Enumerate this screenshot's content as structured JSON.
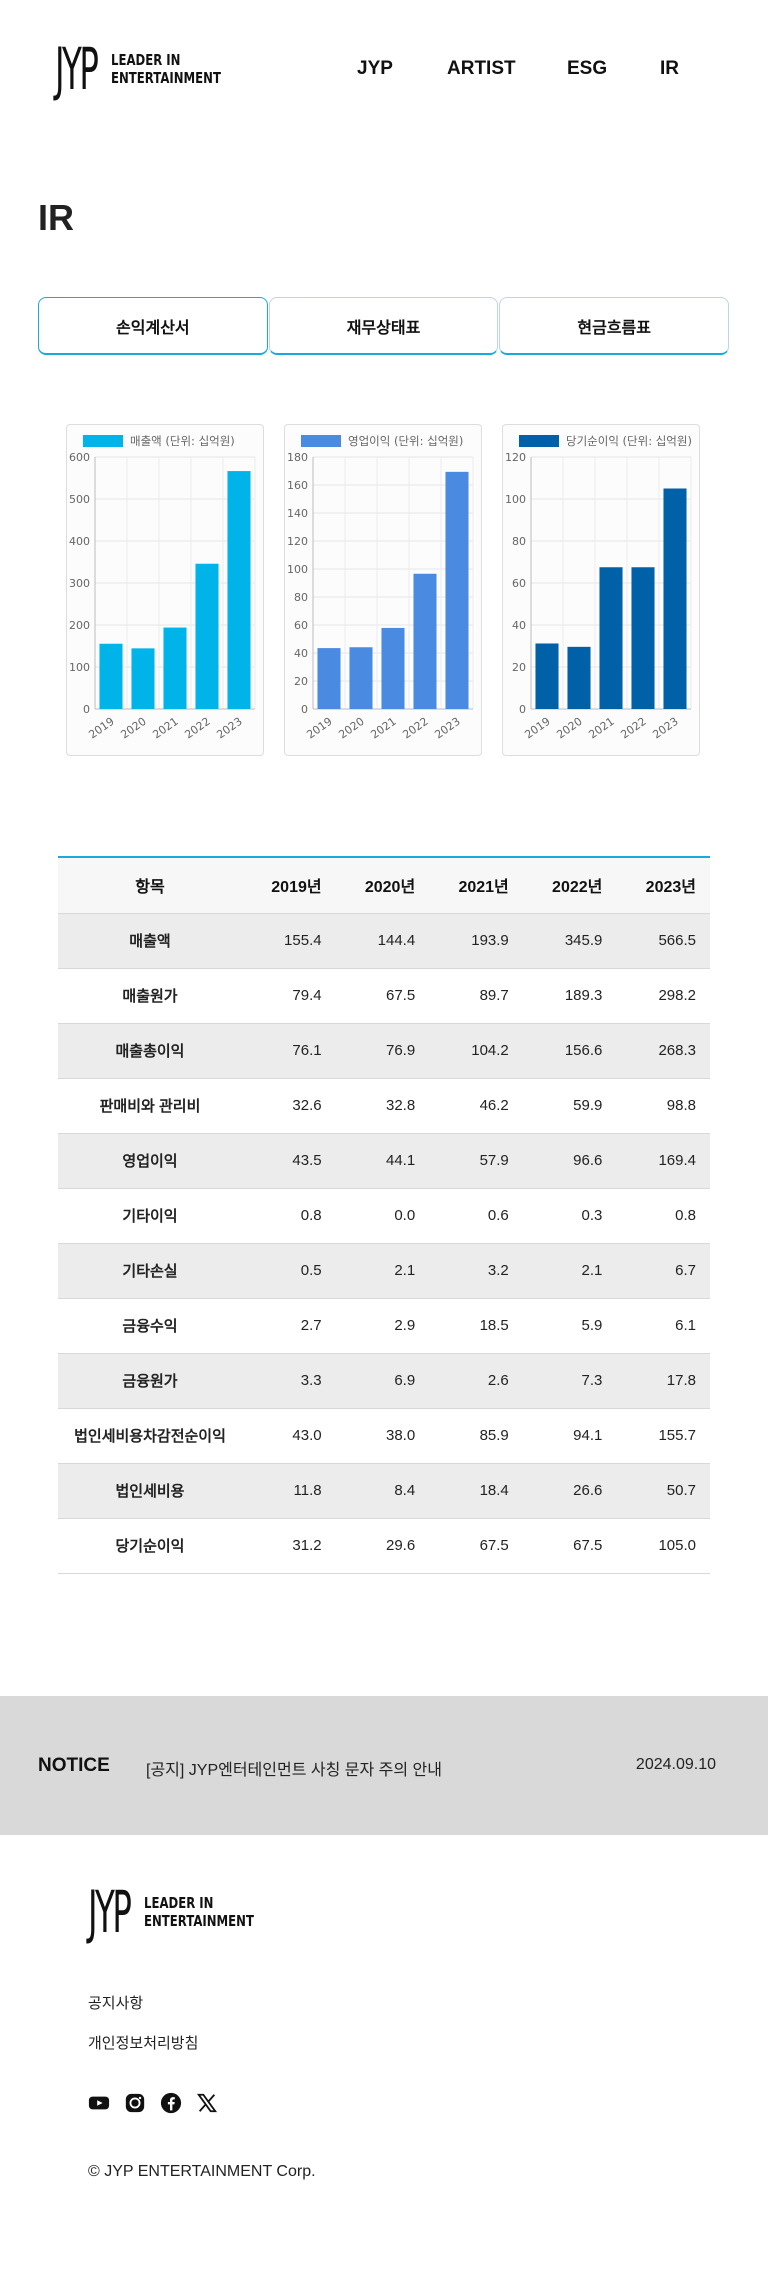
{
  "header": {
    "logo_mark": "JYP",
    "logo_line1": "LEADER IN",
    "logo_line2": "ENTERTAINMENT",
    "nav": [
      "JYP",
      "ARTIST",
      "ESG",
      "IR"
    ]
  },
  "page_title": "IR",
  "tabs": [
    {
      "label": "손익계산서",
      "active": true
    },
    {
      "label": "재무상태표",
      "active": false
    },
    {
      "label": "현금흐름표",
      "active": false
    }
  ],
  "chart_data": [
    {
      "type": "bar",
      "legend": "매출액 (단위: 십억원)",
      "color": "#00b4ea",
      "categories": [
        "2019",
        "2020",
        "2021",
        "2022",
        "2023"
      ],
      "values": [
        155.4,
        144.4,
        193.9,
        345.9,
        566.5
      ],
      "ylim": [
        0,
        600
      ],
      "yticks": [
        0,
        100,
        200,
        300,
        400,
        500,
        600
      ],
      "grid": true
    },
    {
      "type": "bar",
      "legend": "영업이익 (단위: 십억원)",
      "color": "#4a8ae0",
      "categories": [
        "2019",
        "2020",
        "2021",
        "2022",
        "2023"
      ],
      "values": [
        43.5,
        44.1,
        57.9,
        96.6,
        169.4
      ],
      "ylim": [
        0,
        180
      ],
      "yticks": [
        0,
        20,
        40,
        60,
        80,
        100,
        120,
        140,
        160,
        180
      ],
      "grid": true
    },
    {
      "type": "bar",
      "legend": "당기순이익 (단위: 십억원)",
      "color": "#0060a8",
      "categories": [
        "2019",
        "2020",
        "2021",
        "2022",
        "2023"
      ],
      "values": [
        31.2,
        29.6,
        67.5,
        67.5,
        105.0
      ],
      "ylim": [
        0,
        120
      ],
      "yticks": [
        0,
        20,
        40,
        60,
        80,
        100,
        120
      ],
      "grid": true
    }
  ],
  "table": {
    "header_label": "항목",
    "years": [
      "2019년",
      "2020년",
      "2021년",
      "2022년",
      "2023년"
    ],
    "rows": [
      {
        "label": "매출액",
        "values": [
          "155.4",
          "144.4",
          "193.9",
          "345.9",
          "566.5"
        ]
      },
      {
        "label": "매출원가",
        "values": [
          "79.4",
          "67.5",
          "89.7",
          "189.3",
          "298.2"
        ]
      },
      {
        "label": "매출총이익",
        "values": [
          "76.1",
          "76.9",
          "104.2",
          "156.6",
          "268.3"
        ]
      },
      {
        "label": "판매비와 관리비",
        "values": [
          "32.6",
          "32.8",
          "46.2",
          "59.9",
          "98.8"
        ]
      },
      {
        "label": "영업이익",
        "values": [
          "43.5",
          "44.1",
          "57.9",
          "96.6",
          "169.4"
        ]
      },
      {
        "label": "기타이익",
        "values": [
          "0.8",
          "0.0",
          "0.6",
          "0.3",
          "0.8"
        ]
      },
      {
        "label": "기타손실",
        "values": [
          "0.5",
          "2.1",
          "3.2",
          "2.1",
          "6.7"
        ]
      },
      {
        "label": "금융수익",
        "values": [
          "2.7",
          "2.9",
          "18.5",
          "5.9",
          "6.1"
        ]
      },
      {
        "label": "금융원가",
        "values": [
          "3.3",
          "6.9",
          "2.6",
          "7.3",
          "17.8"
        ]
      },
      {
        "label": "법인세비용차감전순이익",
        "values": [
          "43.0",
          "38.0",
          "85.9",
          "94.1",
          "155.7"
        ]
      },
      {
        "label": "법인세비용",
        "values": [
          "11.8",
          "8.4",
          "18.4",
          "26.6",
          "50.7"
        ]
      },
      {
        "label": "당기순이익",
        "values": [
          "31.2",
          "29.6",
          "67.5",
          "67.5",
          "105.0"
        ]
      }
    ]
  },
  "notice": {
    "label": "NOTICE",
    "title": "[공지] JYP엔터테인먼트 사칭 문자 주의 안내",
    "date": "2024.09.10"
  },
  "footer": {
    "links": [
      "공지사항",
      "개인정보처리방침"
    ],
    "socials": [
      "youtube-icon",
      "instagram-icon",
      "facebook-icon",
      "x-icon"
    ],
    "copyright": "© JYP ENTERTAINMENT Corp."
  }
}
